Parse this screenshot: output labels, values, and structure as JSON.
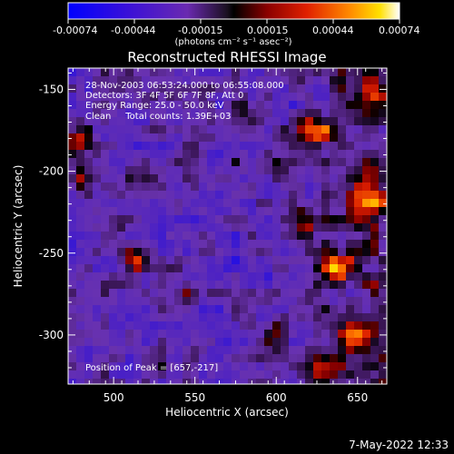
{
  "colorbar": {
    "tick_labels": [
      "-0.00074",
      "-0.00044",
      "-0.00015",
      "0.00015",
      "0.00044",
      "0.00074"
    ],
    "unit_label": "(photons cm⁻² s⁻¹ asec⁻²)",
    "range": [
      -0.00074,
      0.00074
    ]
  },
  "info": {
    "time_range": "28-Nov-2003 06:53:24.000 to 06:55:08.000",
    "detectors": "Detectors: 3F 4F 5F 6F 7F 8F, Att 0",
    "energy_range": "Energy Range: 25.0 - 50.0 keV",
    "clean_counts": "Clean     Total counts: 1.39E+03",
    "peak": "Position of Peak = [657,-217]"
  },
  "footer": {
    "timestamp": "7-May-2022 12:33"
  },
  "chart_data": {
    "type": "heatmap",
    "title": "Reconstructed RHESSI Image",
    "xlabel": "Heliocentric X (arcsec)",
    "ylabel": "Heliocentric Y (arcsec)",
    "xlim": [
      472,
      668
    ],
    "ylim": [
      -330,
      -137
    ],
    "xticks": [
      500,
      550,
      600,
      650
    ],
    "yticks": [
      -150,
      -200,
      -250,
      -300
    ],
    "peak": {
      "x": 657,
      "y": -217
    },
    "colormap": "blue-purple-red-yellow-white"
  }
}
